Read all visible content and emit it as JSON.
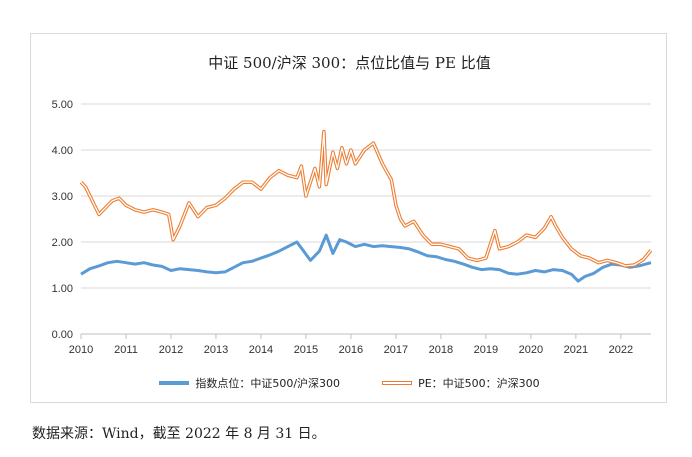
{
  "chart_data": {
    "type": "line",
    "title": "中证 500/沪深 300：点位比值与 PE 比值",
    "xlabel": "",
    "ylabel": "",
    "x_ticks": [
      "2010",
      "2011",
      "2012",
      "2013",
      "2014",
      "2015",
      "2016",
      "2017",
      "2018",
      "2019",
      "2020",
      "2021",
      "2022"
    ],
    "y_ticks": [
      "0.00",
      "1.00",
      "2.00",
      "3.00",
      "4.00",
      "5.00"
    ],
    "xlim": [
      2010.0,
      2022.67
    ],
    "ylim": [
      0,
      5
    ],
    "grid": "horizontal",
    "legend_position": "bottom",
    "series": [
      {
        "name": "指数点位：中证500/沪深300",
        "color": "#5b9bd5",
        "style": "solid",
        "x": [
          2010.0,
          2010.2,
          2010.4,
          2010.6,
          2010.8,
          2011.0,
          2011.2,
          2011.4,
          2011.6,
          2011.8,
          2012.0,
          2012.2,
          2012.4,
          2012.6,
          2012.8,
          2013.0,
          2013.2,
          2013.4,
          2013.6,
          2013.8,
          2014.0,
          2014.2,
          2014.4,
          2014.6,
          2014.8,
          2014.95,
          2015.1,
          2015.3,
          2015.45,
          2015.6,
          2015.75,
          2015.9,
          2016.1,
          2016.3,
          2016.5,
          2016.7,
          2016.9,
          2017.1,
          2017.3,
          2017.5,
          2017.7,
          2017.9,
          2018.1,
          2018.3,
          2018.5,
          2018.7,
          2018.9,
          2019.1,
          2019.3,
          2019.5,
          2019.7,
          2019.9,
          2020.1,
          2020.3,
          2020.5,
          2020.7,
          2020.9,
          2021.05,
          2021.2,
          2021.4,
          2021.6,
          2021.8,
          2022.0,
          2022.2,
          2022.4,
          2022.67
        ],
        "y": [
          1.3,
          1.42,
          1.48,
          1.55,
          1.58,
          1.55,
          1.52,
          1.55,
          1.5,
          1.47,
          1.38,
          1.42,
          1.4,
          1.38,
          1.35,
          1.33,
          1.35,
          1.45,
          1.55,
          1.58,
          1.65,
          1.72,
          1.8,
          1.9,
          2.0,
          1.8,
          1.6,
          1.8,
          2.15,
          1.75,
          2.05,
          2.0,
          1.9,
          1.95,
          1.9,
          1.92,
          1.9,
          1.88,
          1.85,
          1.78,
          1.7,
          1.68,
          1.62,
          1.58,
          1.52,
          1.45,
          1.4,
          1.42,
          1.4,
          1.32,
          1.3,
          1.33,
          1.38,
          1.35,
          1.4,
          1.38,
          1.3,
          1.15,
          1.25,
          1.32,
          1.45,
          1.52,
          1.5,
          1.45,
          1.48,
          1.55
        ]
      },
      {
        "name": "PE：中证500：沪深300",
        "color": "#ed7d31",
        "style": "double",
        "x": [
          2010.0,
          2010.1,
          2010.25,
          2010.4,
          2010.55,
          2010.7,
          2010.85,
          2011.0,
          2011.2,
          2011.4,
          2011.6,
          2011.8,
          2011.95,
          2012.05,
          2012.2,
          2012.4,
          2012.6,
          2012.8,
          2013.0,
          2013.2,
          2013.4,
          2013.6,
          2013.8,
          2014.0,
          2014.2,
          2014.4,
          2014.6,
          2014.8,
          2014.9,
          2015.0,
          2015.1,
          2015.2,
          2015.3,
          2015.4,
          2015.45,
          2015.6,
          2015.7,
          2015.8,
          2015.9,
          2016.0,
          2016.1,
          2016.3,
          2016.5,
          2016.7,
          2016.9,
          2017.0,
          2017.1,
          2017.2,
          2017.4,
          2017.6,
          2017.8,
          2018.0,
          2018.2,
          2018.4,
          2018.6,
          2018.8,
          2019.0,
          2019.2,
          2019.3,
          2019.5,
          2019.7,
          2019.9,
          2020.1,
          2020.3,
          2020.45,
          2020.55,
          2020.7,
          2020.9,
          2021.1,
          2021.3,
          2021.5,
          2021.7,
          2021.9,
          2022.1,
          2022.3,
          2022.5,
          2022.67
        ],
        "y": [
          3.3,
          3.2,
          2.9,
          2.6,
          2.75,
          2.9,
          2.95,
          2.8,
          2.7,
          2.65,
          2.7,
          2.65,
          2.6,
          2.05,
          2.35,
          2.85,
          2.55,
          2.75,
          2.8,
          2.95,
          3.15,
          3.3,
          3.3,
          3.15,
          3.4,
          3.55,
          3.45,
          3.4,
          3.65,
          3.0,
          3.3,
          3.6,
          3.2,
          4.4,
          3.25,
          3.95,
          3.6,
          4.05,
          3.7,
          4.0,
          3.7,
          4.0,
          4.15,
          3.7,
          3.35,
          2.8,
          2.5,
          2.35,
          2.45,
          2.15,
          1.95,
          1.95,
          1.9,
          1.85,
          1.65,
          1.6,
          1.65,
          2.25,
          1.85,
          1.9,
          2.0,
          2.15,
          2.1,
          2.3,
          2.55,
          2.35,
          2.1,
          1.85,
          1.7,
          1.65,
          1.55,
          1.6,
          1.55,
          1.48,
          1.5,
          1.62,
          1.82
        ]
      }
    ]
  },
  "legend": {
    "series1_label": "指数点位：中证500/沪深300",
    "series2_label": "PE：中证500：沪深300"
  },
  "footer": {
    "source": "数据来源：Wind，截至 2022 年 8 月 31 日。"
  }
}
